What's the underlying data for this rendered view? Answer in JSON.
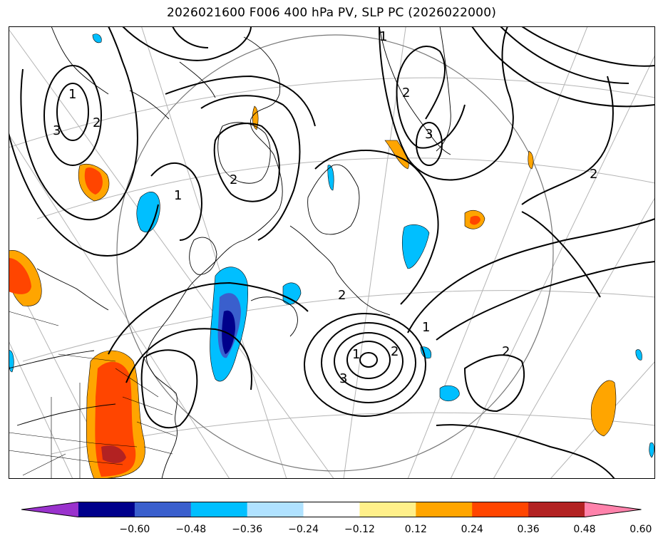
{
  "title": "2026021600 F006 400 hPa PV, SLP PC (2026022000)",
  "colorbar": {
    "extend": "both",
    "colors": [
      "#9a32cd",
      "#00008b",
      "#3a5fcd",
      "#00bfff",
      "#b0e2ff",
      "#ffffff",
      "#fff08a",
      "#ffa500",
      "#ff4500",
      "#b22222",
      "#ff82ab"
    ],
    "tick_labels": [
      "−0.60",
      "−0.48",
      "−0.36",
      "−0.24",
      "−0.12",
      "0.12",
      "0.24",
      "0.36",
      "0.48",
      "0.60"
    ]
  },
  "contour_labels": [
    "1",
    "2",
    "3",
    "2",
    "2",
    "1",
    "2",
    "2",
    "2",
    "1",
    "2",
    "1",
    "1",
    "2",
    "3"
  ],
  "colors": {
    "land_line": "#000000",
    "grid": "#b4b4b4",
    "contour": "#000000"
  }
}
